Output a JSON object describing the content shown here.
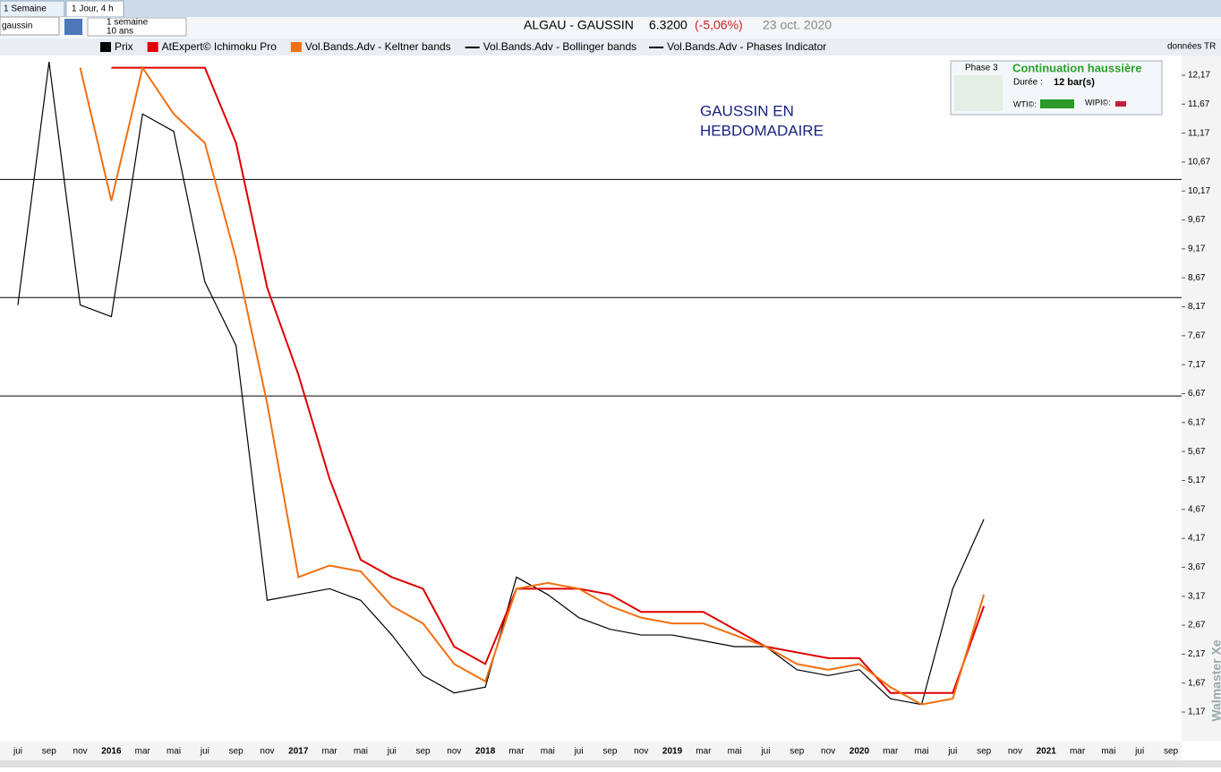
{
  "tabs": [
    "1 Semaine",
    "1 Jour, 4 h"
  ],
  "toolbar": {
    "search": "gaussin",
    "period": "1 semaine",
    "range": "10 ans",
    "symbol": "ALGAU - GAUSSIN",
    "price": "6.3200",
    "change": "(-5,06%)",
    "date": "23 oct. 2020",
    "data_source": "données TR"
  },
  "annotation": [
    "GAUSSIN EN",
    "HEBDOMADAIRE"
  ],
  "phase_box": {
    "phase": "Phase 3",
    "title": "Continuation haussière",
    "duration_label": "Durée :",
    "duration": "12 bar(s)",
    "wti": "WTI©:",
    "wipi": "WIPI©:"
  },
  "watermark": "Walmaster Xe",
  "chart_data": {
    "type": "line",
    "categories": [
      "jui",
      "sep",
      "nov",
      "2016",
      "mar",
      "mai",
      "jui",
      "sep",
      "nov",
      "2017",
      "mar",
      "mai",
      "jui",
      "sep",
      "nov",
      "2018",
      "mar",
      "mai",
      "jui",
      "sep",
      "nov",
      "2019",
      "mar",
      "mai",
      "jui",
      "sep",
      "nov",
      "2020",
      "mar",
      "mai",
      "jui",
      "sep",
      "nov",
      "2021",
      "mar",
      "mai",
      "jui",
      "sep"
    ],
    "series": [
      {
        "name": "Prix",
        "color": "#000000",
        "values": [
          8.2,
          12.4,
          8.2,
          8.0,
          11.5,
          11.2,
          8.6,
          7.5,
          3.1,
          3.2,
          3.3,
          3.1,
          2.5,
          1.8,
          1.5,
          1.6,
          3.5,
          3.2,
          2.8,
          2.6,
          2.5,
          2.5,
          2.4,
          2.3,
          2.3,
          1.9,
          1.8,
          1.9,
          1.4,
          1.3,
          3.3,
          4.5,
          null,
          null,
          null,
          null,
          null,
          null
        ]
      },
      {
        "name": "AtExpert© Ichimoku Pro",
        "color": "#e00000",
        "values": [
          null,
          null,
          null,
          12.3,
          12.3,
          12.3,
          12.3,
          11.0,
          8.5,
          7.0,
          5.2,
          3.8,
          3.5,
          3.3,
          2.3,
          2.0,
          3.3,
          3.3,
          3.3,
          3.2,
          2.9,
          2.9,
          2.9,
          2.6,
          2.3,
          2.2,
          2.1,
          2.1,
          1.5,
          1.5,
          1.5,
          3.0,
          null,
          null,
          null,
          null,
          null,
          null
        ]
      },
      {
        "name": "Vol.Bands.Adv - Keltner bands",
        "color": "#f07010",
        "values": [
          null,
          null,
          12.3,
          10,
          12.3,
          11.5,
          11,
          9.0,
          6.5,
          3.5,
          3.7,
          3.6,
          3.0,
          2.7,
          2.0,
          1.7,
          3.3,
          3.4,
          3.3,
          3.0,
          2.8,
          2.7,
          2.7,
          2.5,
          2.3,
          2.0,
          1.9,
          2.0,
          1.6,
          1.3,
          1.4,
          3.2,
          null,
          null,
          null,
          null,
          null,
          null
        ]
      }
    ],
    "legend_extra": [
      "Vol.Bands.Adv - Bollinger bands",
      "Vol.Bands.Adv - Phases Indicator"
    ],
    "levels": [
      10.37,
      8.33,
      6.63
    ],
    "ylim": [
      0.66,
      12.51
    ],
    "yticks": [
      {
        "value": 12.17,
        "label": "12,17"
      },
      {
        "value": 11.67,
        "label": "11,67"
      },
      {
        "value": 11.17,
        "label": "11,17"
      },
      {
        "value": 10.67,
        "label": "10,67"
      },
      {
        "value": 10.17,
        "label": "10,17"
      },
      {
        "value": 9.67,
        "label": "9,67"
      },
      {
        "value": 9.17,
        "label": "9,17"
      },
      {
        "value": 8.67,
        "label": "8,67"
      },
      {
        "value": 8.17,
        "label": "8,17"
      },
      {
        "value": 7.67,
        "label": "7,67"
      },
      {
        "value": 7.17,
        "label": "7,17"
      },
      {
        "value": 6.67,
        "label": "6,67"
      },
      {
        "value": 6.17,
        "label": "6,17"
      },
      {
        "value": 5.67,
        "label": "5,67"
      },
      {
        "value": 5.17,
        "label": "5,17"
      },
      {
        "value": 4.67,
        "label": "4,67"
      },
      {
        "value": 4.17,
        "label": "4,17"
      },
      {
        "value": 3.67,
        "label": "3,67"
      },
      {
        "value": 3.17,
        "label": "3,17"
      },
      {
        "value": 2.67,
        "label": "2,67"
      },
      {
        "value": 2.17,
        "label": "2,17"
      },
      {
        "value": 1.67,
        "label": "1,67"
      },
      {
        "value": 1.17,
        "label": "1,17"
      }
    ]
  }
}
